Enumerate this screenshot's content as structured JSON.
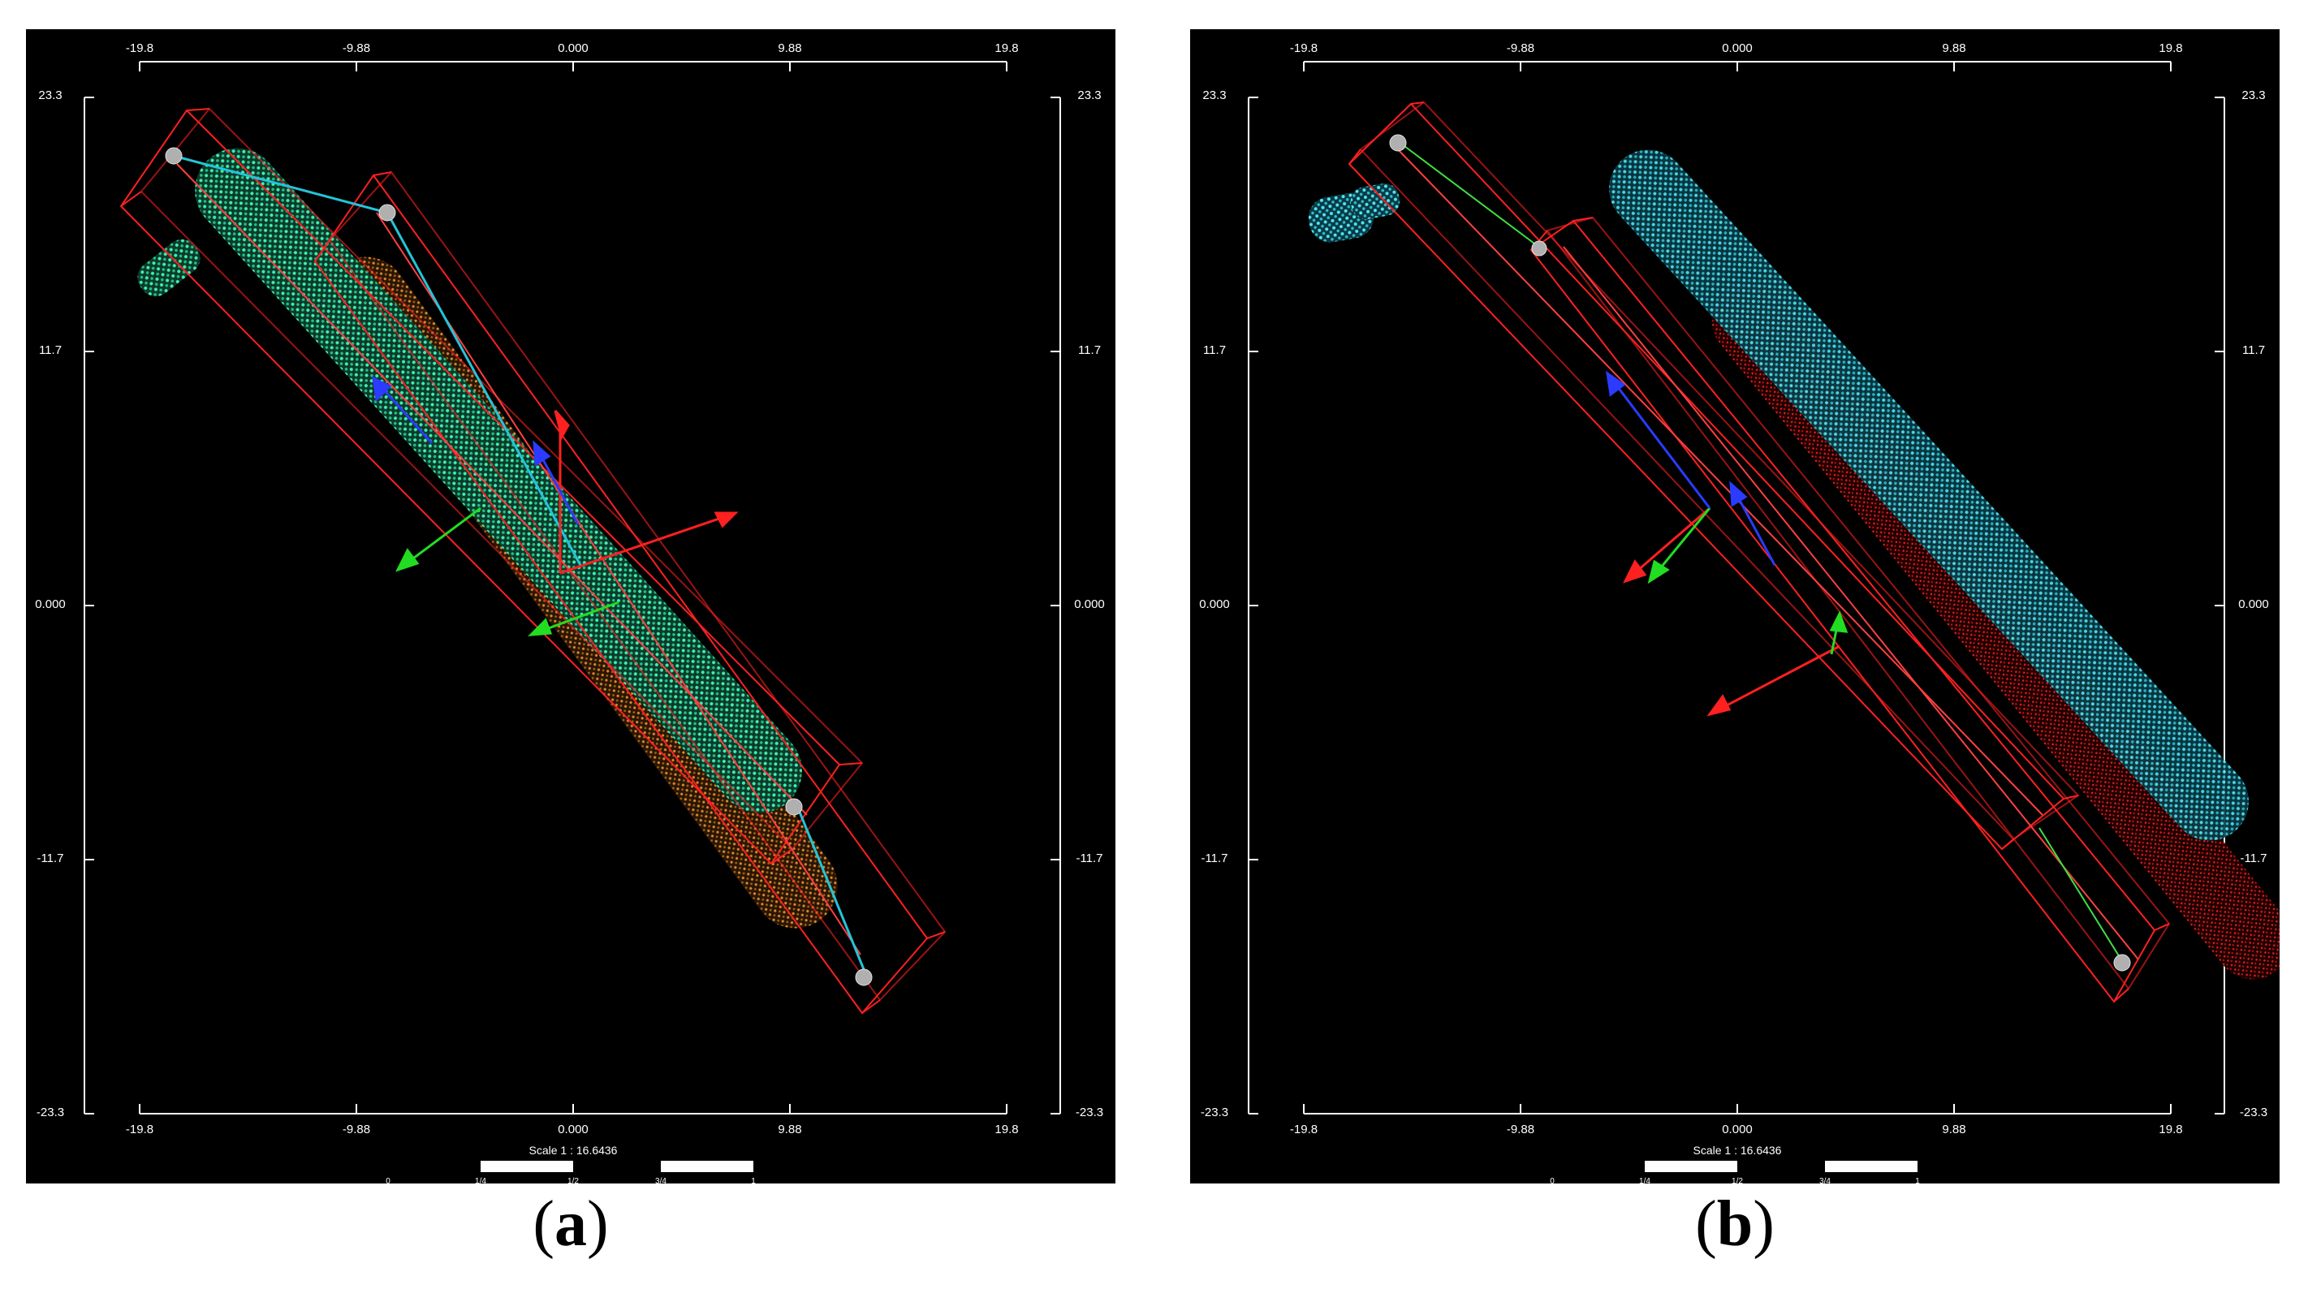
{
  "panels": [
    {
      "id": "a",
      "caption_letter": "a",
      "top_ticks": [
        "-19.8",
        "-9.88",
        "0.000",
        "9.88",
        "19.8"
      ],
      "bottom_ticks": [
        "-19.8",
        "-9.88",
        "0.000",
        "9.88",
        "19.8"
      ],
      "left_ticks": [
        "23.3",
        "11.7",
        "0.000",
        "-11.7",
        "-23.3"
      ],
      "right_ticks": [
        "23.3",
        "11.7",
        "0.000",
        "-11.7",
        "-23.3"
      ],
      "scale_label": "Scale 1 : 16.6436",
      "scale_marks": [
        "0",
        "1/4",
        "1/2",
        "3/4",
        "1"
      ],
      "colors": {
        "cloud_1": "#2fe0a0",
        "cloud_2": "#c8791e",
        "box": "#ff2020",
        "link": "#24c4d8"
      }
    },
    {
      "id": "b",
      "caption_letter": "b",
      "top_ticks": [
        "-19.8",
        "-9.88",
        "0.000",
        "9.88",
        "19.8"
      ],
      "bottom_ticks": [
        "-19.8",
        "-9.88",
        "0.000",
        "9.88",
        "19.8"
      ],
      "left_ticks": [
        "23.3",
        "11.7",
        "0.000",
        "-11.7",
        "-23.3"
      ],
      "right_ticks": [
        "23.3",
        "11.7",
        "0.000",
        "-11.7",
        "-23.3"
      ],
      "scale_label": "Scale 1 : 16.6436",
      "scale_marks": [
        "0",
        "1/4",
        "1/2",
        "3/4",
        "1"
      ],
      "colors": {
        "cloud_1": "#3ad6e6",
        "cloud_2": "#e02020",
        "box": "#ff2020",
        "link": "#40e040"
      }
    }
  ]
}
